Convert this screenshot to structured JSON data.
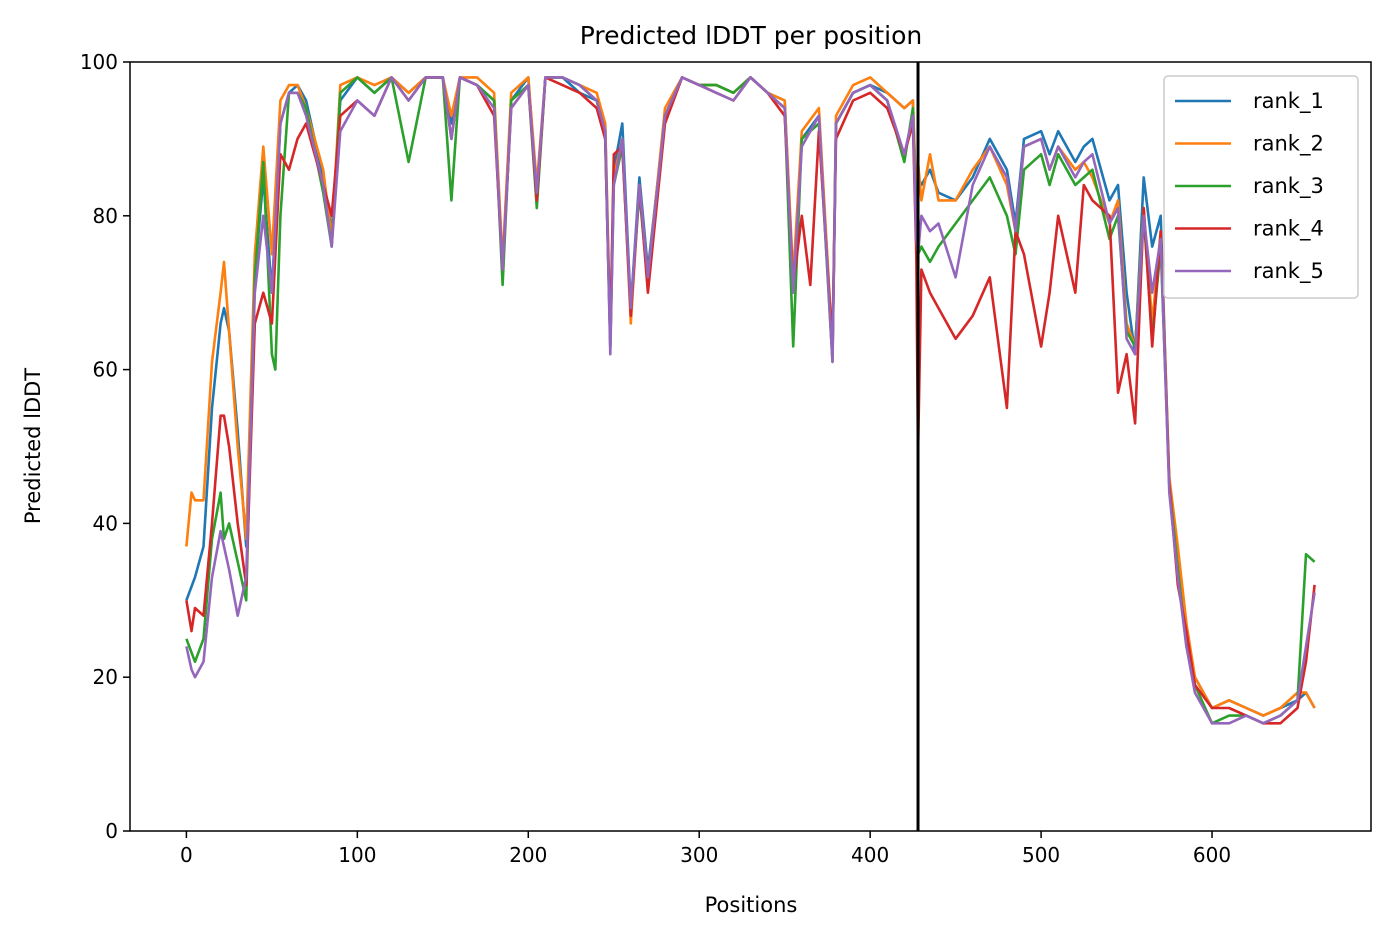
{
  "chart_data": {
    "type": "line",
    "title": "Predicted lDDT per position",
    "xlabel": "Positions",
    "ylabel": "Predicted lDDT",
    "xlim": [
      -33,
      693
    ],
    "ylim": [
      0,
      100
    ],
    "xticks": [
      0,
      100,
      200,
      300,
      400,
      500,
      600
    ],
    "yticks": [
      0,
      20,
      40,
      60,
      80,
      100
    ],
    "grid": false,
    "legend_position": "top-right",
    "vertical_line_x": 428,
    "vertical_line_color": "#000000",
    "series": [
      {
        "name": "rank_1",
        "color": "#1f77b4",
        "x": [
          0,
          5,
          10,
          15,
          20,
          22,
          25,
          30,
          35,
          40,
          45,
          50,
          55,
          60,
          65,
          70,
          80,
          85,
          90,
          100,
          110,
          120,
          130,
          140,
          150,
          155,
          160,
          170,
          180,
          185,
          190,
          200,
          205,
          210,
          220,
          230,
          240,
          245,
          248,
          250,
          255,
          260,
          265,
          270,
          280,
          290,
          300,
          310,
          320,
          330,
          340,
          350,
          355,
          360,
          370,
          378,
          380,
          390,
          400,
          410,
          420,
          425,
          427,
          428,
          430,
          435,
          440,
          450,
          460,
          470,
          480,
          485,
          490,
          500,
          505,
          510,
          520,
          525,
          530,
          540,
          545,
          550,
          555,
          560,
          565,
          570,
          575,
          580,
          585,
          590,
          600,
          610,
          620,
          630,
          640,
          650,
          655,
          660
        ],
        "values": [
          30,
          33,
          37,
          55,
          66,
          68,
          65,
          52,
          37,
          72,
          85,
          70,
          92,
          96,
          97,
          95,
          85,
          78,
          95,
          98,
          96,
          98,
          96,
          98,
          98,
          92,
          98,
          97,
          95,
          73,
          95,
          98,
          82,
          98,
          98,
          96,
          95,
          92,
          63,
          86,
          92,
          68,
          85,
          73,
          93,
          98,
          97,
          97,
          96,
          98,
          96,
          95,
          70,
          90,
          93,
          62,
          92,
          96,
          97,
          96,
          94,
          95,
          80,
          85,
          84,
          86,
          83,
          82,
          85,
          90,
          86,
          79,
          90,
          91,
          88,
          91,
          87,
          89,
          90,
          82,
          84,
          70,
          62,
          85,
          76,
          80,
          45,
          35,
          25,
          20,
          16,
          17,
          16,
          15,
          16,
          17,
          18,
          16
        ]
      },
      {
        "name": "rank_2",
        "color": "#ff7f0e",
        "x": [
          0,
          3,
          5,
          10,
          15,
          20,
          22,
          25,
          30,
          35,
          40,
          45,
          50,
          55,
          60,
          65,
          70,
          80,
          85,
          90,
          100,
          110,
          120,
          130,
          140,
          150,
          155,
          160,
          170,
          180,
          185,
          190,
          200,
          205,
          210,
          220,
          230,
          240,
          245,
          248,
          250,
          255,
          260,
          265,
          270,
          280,
          290,
          300,
          310,
          320,
          330,
          340,
          350,
          355,
          360,
          370,
          378,
          380,
          390,
          400,
          410,
          420,
          425,
          427,
          428,
          430,
          435,
          440,
          450,
          460,
          470,
          480,
          485,
          490,
          500,
          505,
          510,
          520,
          525,
          530,
          540,
          545,
          550,
          555,
          560,
          565,
          570,
          575,
          580,
          585,
          590,
          600,
          610,
          620,
          630,
          640,
          650,
          655,
          660
        ],
        "values": [
          37,
          44,
          43,
          43,
          61,
          70,
          74,
          65,
          50,
          38,
          75,
          89,
          75,
          95,
          97,
          97,
          94,
          86,
          77,
          97,
          98,
          97,
          98,
          96,
          98,
          98,
          93,
          98,
          98,
          96,
          74,
          96,
          98,
          84,
          98,
          98,
          97,
          96,
          92,
          65,
          85,
          90,
          66,
          84,
          72,
          94,
          98,
          97,
          97,
          96,
          98,
          96,
          95,
          72,
          91,
          94,
          63,
          93,
          97,
          98,
          96,
          94,
          95,
          82,
          87,
          82,
          88,
          82,
          82,
          86,
          89,
          84,
          78,
          89,
          90,
          86,
          89,
          86,
          87,
          85,
          79,
          82,
          66,
          63,
          81,
          66,
          78,
          46,
          37,
          27,
          20,
          16,
          17,
          16,
          15,
          16,
          18,
          18,
          16
        ]
      },
      {
        "name": "rank_3",
        "color": "#2ca02c",
        "x": [
          0,
          5,
          10,
          15,
          20,
          22,
          25,
          30,
          35,
          40,
          45,
          50,
          52,
          55,
          60,
          65,
          70,
          80,
          85,
          90,
          100,
          110,
          120,
          130,
          140,
          150,
          155,
          160,
          170,
          180,
          185,
          190,
          200,
          205,
          210,
          220,
          230,
          240,
          245,
          248,
          250,
          255,
          260,
          265,
          270,
          280,
          290,
          300,
          310,
          320,
          330,
          340,
          350,
          355,
          360,
          370,
          378,
          380,
          390,
          400,
          410,
          420,
          425,
          427,
          428,
          430,
          435,
          440,
          450,
          460,
          470,
          480,
          485,
          490,
          500,
          505,
          510,
          520,
          525,
          530,
          540,
          545,
          550,
          555,
          560,
          565,
          570,
          575,
          580,
          585,
          590,
          600,
          610,
          620,
          630,
          640,
          650,
          655,
          660
        ],
        "values": [
          25,
          22,
          25,
          38,
          44,
          38,
          40,
          35,
          30,
          72,
          87,
          62,
          60,
          80,
          96,
          96,
          94,
          83,
          76,
          96,
          98,
          96,
          98,
          87,
          98,
          98,
          82,
          98,
          97,
          95,
          71,
          95,
          97,
          81,
          98,
          98,
          97,
          95,
          90,
          63,
          84,
          89,
          68,
          83,
          71,
          93,
          98,
          97,
          97,
          96,
          98,
          96,
          94,
          63,
          90,
          92,
          61,
          92,
          96,
          97,
          95,
          87,
          94,
          78,
          75,
          76,
          74,
          76,
          79,
          82,
          85,
          80,
          75,
          86,
          88,
          84,
          88,
          84,
          85,
          86,
          77,
          80,
          65,
          63,
          80,
          64,
          76,
          45,
          34,
          24,
          19,
          14,
          15,
          15,
          14,
          15,
          17,
          36,
          35
        ]
      },
      {
        "name": "rank_4",
        "color": "#d62728",
        "x": [
          0,
          3,
          5,
          10,
          15,
          20,
          22,
          25,
          30,
          35,
          40,
          45,
          50,
          55,
          60,
          65,
          70,
          80,
          85,
          90,
          100,
          110,
          120,
          130,
          140,
          150,
          155,
          160,
          170,
          180,
          185,
          190,
          200,
          205,
          210,
          220,
          230,
          240,
          245,
          248,
          250,
          255,
          260,
          265,
          270,
          280,
          290,
          300,
          310,
          320,
          330,
          340,
          350,
          355,
          360,
          365,
          370,
          378,
          380,
          390,
          400,
          410,
          420,
          425,
          427,
          428,
          430,
          435,
          440,
          450,
          460,
          470,
          480,
          485,
          490,
          500,
          505,
          510,
          520,
          525,
          530,
          540,
          545,
          550,
          555,
          560,
          565,
          570,
          575,
          580,
          585,
          590,
          600,
          610,
          620,
          630,
          640,
          650,
          655,
          660
        ],
        "values": [
          30,
          26,
          29,
          28,
          40,
          54,
          54,
          50,
          40,
          32,
          66,
          70,
          66,
          88,
          86,
          90,
          92,
          84,
          80,
          93,
          95,
          93,
          98,
          95,
          98,
          98,
          90,
          98,
          97,
          93,
          73,
          94,
          97,
          82,
          98,
          97,
          96,
          94,
          90,
          64,
          88,
          89,
          67,
          84,
          70,
          92,
          98,
          97,
          96,
          95,
          98,
          96,
          93,
          71,
          80,
          71,
          91,
          63,
          90,
          95,
          96,
          94,
          88,
          92,
          75,
          49,
          73,
          70,
          68,
          64,
          67,
          72,
          55,
          78,
          75,
          63,
          70,
          80,
          70,
          84,
          82,
          80,
          57,
          62,
          53,
          81,
          63,
          78,
          45,
          32,
          26,
          19,
          16,
          16,
          15,
          14,
          14,
          16,
          22,
          32
        ]
      },
      {
        "name": "rank_5",
        "color": "#9467bd",
        "x": [
          0,
          3,
          5,
          10,
          15,
          20,
          22,
          25,
          30,
          35,
          40,
          45,
          50,
          55,
          60,
          65,
          70,
          80,
          85,
          90,
          100,
          110,
          120,
          130,
          140,
          150,
          155,
          160,
          170,
          180,
          185,
          190,
          200,
          205,
          210,
          220,
          230,
          240,
          245,
          248,
          250,
          255,
          260,
          265,
          270,
          280,
          290,
          300,
          310,
          320,
          330,
          340,
          350,
          355,
          360,
          370,
          378,
          380,
          390,
          400,
          410,
          420,
          425,
          427,
          428,
          430,
          435,
          440,
          450,
          460,
          470,
          480,
          485,
          490,
          500,
          505,
          510,
          520,
          525,
          530,
          540,
          545,
          550,
          555,
          560,
          565,
          570,
          575,
          580,
          585,
          590,
          600,
          610,
          620,
          630,
          640,
          650,
          655,
          660
        ],
        "values": [
          24,
          21,
          20,
          22,
          33,
          39,
          37,
          34,
          28,
          33,
          70,
          80,
          70,
          92,
          96,
          96,
          93,
          84,
          76,
          91,
          95,
          93,
          98,
          95,
          98,
          98,
          90,
          98,
          97,
          94,
          73,
          94,
          97,
          83,
          98,
          98,
          97,
          95,
          91,
          62,
          84,
          90,
          68,
          84,
          72,
          93,
          98,
          97,
          96,
          95,
          98,
          96,
          94,
          70,
          89,
          93,
          61,
          92,
          96,
          97,
          95,
          88,
          93,
          77,
          75,
          80,
          78,
          79,
          72,
          84,
          89,
          85,
          78,
          89,
          90,
          86,
          89,
          85,
          87,
          88,
          79,
          81,
          64,
          62,
          80,
          70,
          77,
          44,
          33,
          24,
          18,
          14,
          14,
          15,
          14,
          15,
          17,
          24,
          31
        ]
      }
    ]
  }
}
